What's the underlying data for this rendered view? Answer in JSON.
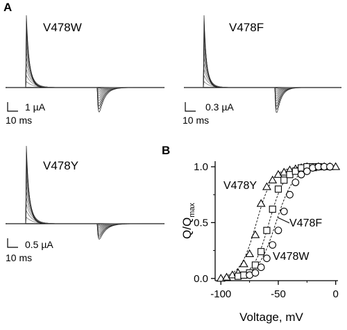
{
  "panels": {
    "A": "A",
    "B": "B"
  },
  "trace_panels": [
    {
      "label": "V478W",
      "scale_current": "1 µA",
      "scale_time": "10 ms"
    },
    {
      "label": "V478F",
      "scale_current": "0.3 µA",
      "scale_time": "10 ms"
    },
    {
      "label": "V478Y",
      "scale_current": "0.5 µA",
      "scale_time": "10 ms"
    }
  ],
  "chart_data": {
    "type": "scatter",
    "title": "",
    "xlabel": "Voltage, mV",
    "ylabel_main": "Q/Q",
    "ylabel_sub": "max",
    "xlim": [
      -105,
      2
    ],
    "ylim": [
      -0.02,
      1.05
    ],
    "x_ticks": [
      -100,
      -50,
      0
    ],
    "x_tick_labels": [
      "-100",
      "-50",
      "0"
    ],
    "y_ticks": [
      0.0,
      0.5,
      1.0
    ],
    "y_tick_labels": [
      "0.0",
      "0.5",
      "1.0"
    ],
    "grid": false,
    "series": [
      {
        "name": "V478Y",
        "marker": "triangle",
        "v_half": -69,
        "slope": 7,
        "points": [
          {
            "x": -100,
            "y": 0.0
          },
          {
            "x": -95,
            "y": 0.01
          },
          {
            "x": -90,
            "y": 0.03
          },
          {
            "x": -85,
            "y": 0.05
          },
          {
            "x": -80,
            "y": 0.13
          },
          {
            "x": -75,
            "y": 0.22
          },
          {
            "x": -70,
            "y": 0.39
          },
          {
            "x": -65,
            "y": 0.67
          },
          {
            "x": -60,
            "y": 0.82
          },
          {
            "x": -55,
            "y": 0.88
          },
          {
            "x": -50,
            "y": 0.93
          },
          {
            "x": -45,
            "y": 0.95
          },
          {
            "x": -40,
            "y": 0.97
          },
          {
            "x": -35,
            "y": 0.98
          },
          {
            "x": -30,
            "y": 0.99
          },
          {
            "x": -25,
            "y": 1.0
          },
          {
            "x": -20,
            "y": 0.99
          },
          {
            "x": -15,
            "y": 1.0
          },
          {
            "x": -10,
            "y": 1.0
          },
          {
            "x": -5,
            "y": 1.0
          },
          {
            "x": 0,
            "y": 1.0
          }
        ]
      },
      {
        "name": "V478F",
        "marker": "square",
        "v_half": -58,
        "slope": 7,
        "points": [
          {
            "x": -85,
            "y": 0.02
          },
          {
            "x": -80,
            "y": 0.03
          },
          {
            "x": -75,
            "y": 0.05
          },
          {
            "x": -70,
            "y": 0.12
          },
          {
            "x": -65,
            "y": 0.24
          },
          {
            "x": -60,
            "y": 0.43
          },
          {
            "x": -55,
            "y": 0.62
          },
          {
            "x": -50,
            "y": 0.8
          },
          {
            "x": -45,
            "y": 0.88
          },
          {
            "x": -40,
            "y": 0.93
          },
          {
            "x": -35,
            "y": 0.96
          },
          {
            "x": -30,
            "y": 0.99
          },
          {
            "x": -25,
            "y": 1.0
          },
          {
            "x": -20,
            "y": 1.0
          },
          {
            "x": -15,
            "y": 1.0
          }
        ]
      },
      {
        "name": "V478W",
        "marker": "circle",
        "v_half": -52,
        "slope": 8,
        "points": [
          {
            "x": -75,
            "y": 0.03
          },
          {
            "x": -70,
            "y": 0.05
          },
          {
            "x": -65,
            "y": 0.1
          },
          {
            "x": -60,
            "y": 0.18
          },
          {
            "x": -55,
            "y": 0.3
          },
          {
            "x": -50,
            "y": 0.43
          },
          {
            "x": -45,
            "y": 0.6
          },
          {
            "x": -40,
            "y": 0.75
          },
          {
            "x": -35,
            "y": 0.86
          },
          {
            "x": -30,
            "y": 0.93
          },
          {
            "x": -25,
            "y": 0.96
          },
          {
            "x": -20,
            "y": 0.99
          },
          {
            "x": -15,
            "y": 1.0
          },
          {
            "x": -10,
            "y": 1.0
          },
          {
            "x": -5,
            "y": 1.0
          }
        ]
      }
    ]
  }
}
